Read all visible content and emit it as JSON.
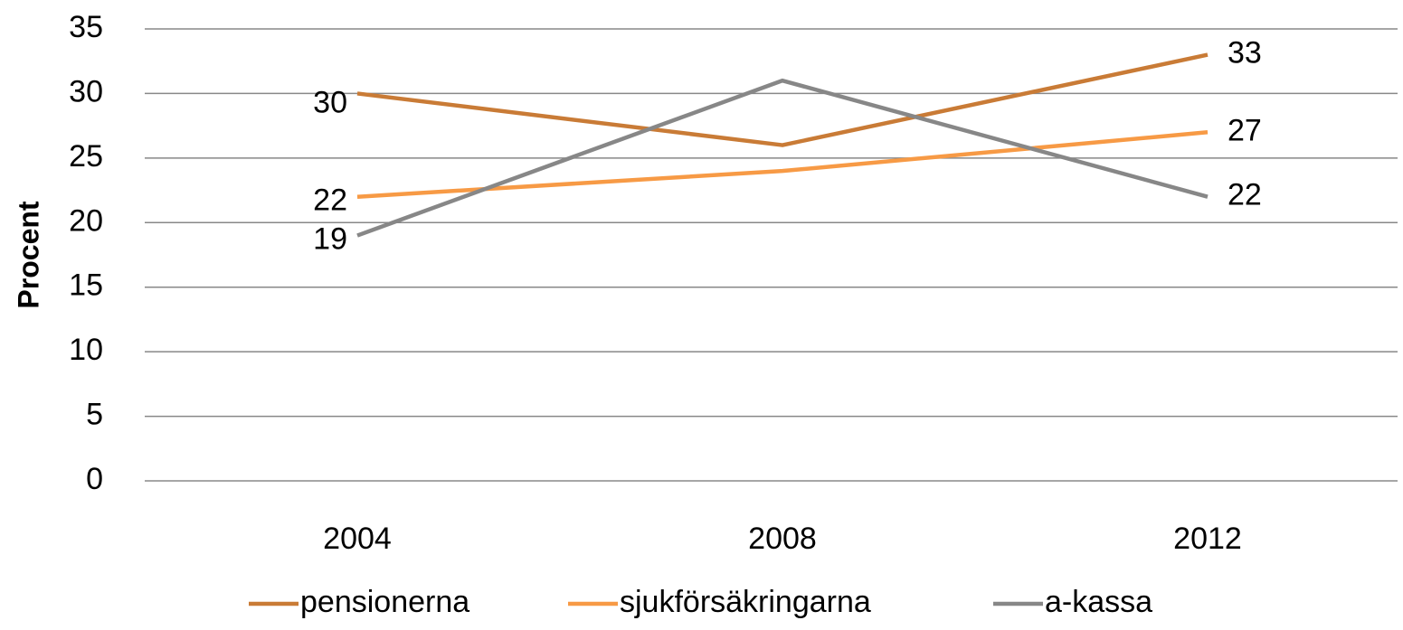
{
  "chart_data": {
    "type": "line",
    "y_label": "Procent",
    "categories": [
      "2004",
      "2008",
      "2012"
    ],
    "series": [
      {
        "name": "pensionerna",
        "color": "#c97b36",
        "values": [
          30,
          26,
          33
        ]
      },
      {
        "name": "sjukförsäkringarna",
        "color": "#f79a45",
        "values": [
          22,
          24,
          27
        ]
      },
      {
        "name": "a-kassa",
        "color": "#878787",
        "values": [
          19,
          31,
          22
        ]
      }
    ],
    "ylim": [
      0,
      35
    ],
    "yticks": [
      0,
      5,
      10,
      15,
      20,
      25,
      30,
      35
    ],
    "grid": true,
    "legend": "bottom"
  }
}
